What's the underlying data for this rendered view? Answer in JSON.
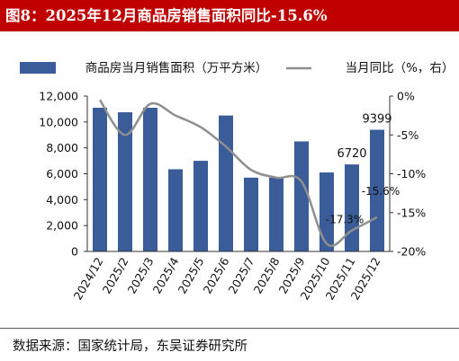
{
  "title": "图8：2025年12月商品房销售面积同比-15.6%",
  "source": "数据来源：国家统计局，东吴证券研究所",
  "colors": {
    "title_bg": "#c00000",
    "title_text": "#ffffff",
    "bar": "#3a5c99",
    "line": "#8f8f8f",
    "text": "#111111"
  },
  "legend": [
    {
      "label": "商品房当月销售面积（万平方米）",
      "kind": "bar"
    },
    {
      "label": "当月同比（%，右）",
      "kind": "line"
    }
  ],
  "chart_data": {
    "type": "bar",
    "categories": [
      "2024/12",
      "2025/2",
      "2025/3",
      "2025/4",
      "2025/5",
      "2025/6",
      "2025/7",
      "2025/8",
      "2025/9",
      "2025/10",
      "2025/11",
      "2025/12"
    ],
    "series": [
      {
        "name": "商品房当月销售面积（万平方米）",
        "type": "bar",
        "axis": "left",
        "values": [
          11100,
          10750,
          11100,
          6350,
          7000,
          10500,
          5700,
          5700,
          8500,
          6100,
          6720,
          9399
        ]
      },
      {
        "name": "当月同比（%，右）",
        "type": "line",
        "axis": "right",
        "values": [
          -0.5,
          -5.0,
          -1.0,
          -2.5,
          -4.0,
          -6.5,
          -9.5,
          -10.5,
          -11.0,
          -19.0,
          -17.3,
          -15.6
        ]
      }
    ],
    "left_axis": {
      "min": 0,
      "max": 12000,
      "ticks": [
        0,
        2000,
        4000,
        6000,
        8000,
        10000,
        12000
      ],
      "tick_labels": [
        "0",
        "2,000",
        "4,000",
        "6,000",
        "8,000",
        "10,000",
        "12,000"
      ]
    },
    "right_axis": {
      "min": -20,
      "max": 0,
      "ticks": [
        0,
        -5,
        -10,
        -15,
        -20
      ],
      "tick_labels": [
        "0%",
        "-5%",
        "-10%",
        "-15%",
        "-20%"
      ]
    },
    "annotations": [
      {
        "text": "9399",
        "series": 0,
        "index": 11
      },
      {
        "text": "6720",
        "series": 0,
        "index": 10
      },
      {
        "text": "-17.3%",
        "series": 1,
        "index": 10
      },
      {
        "text": "-15.6%",
        "series": 1,
        "index": 11
      }
    ],
    "grid": false,
    "legend_position": "top"
  }
}
